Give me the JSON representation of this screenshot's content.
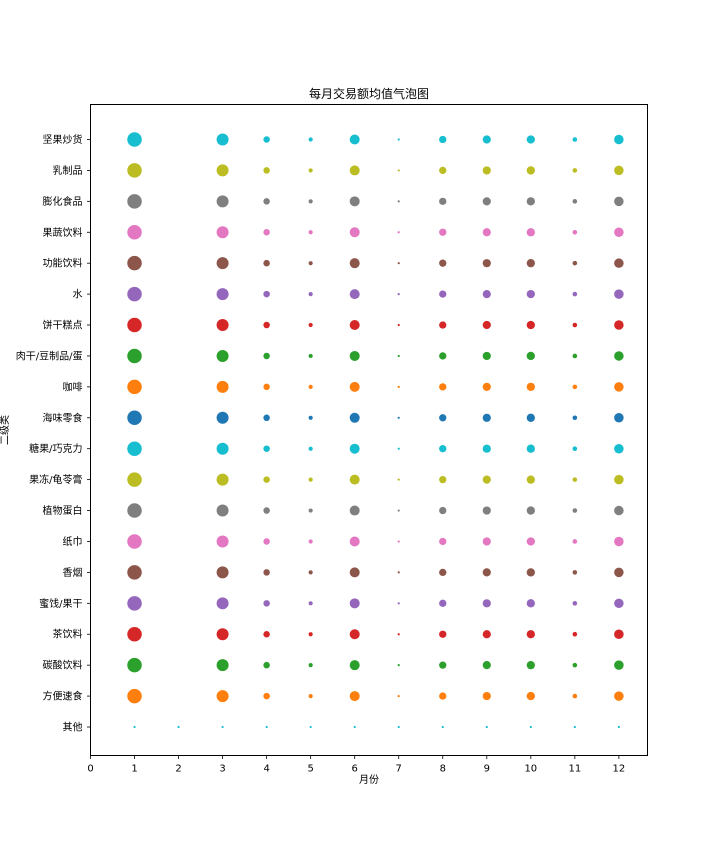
{
  "chart_data": {
    "type": "scatter",
    "title": "每月交易额均值气泡图",
    "xlabel": "月份",
    "ylabel": "二级类",
    "xlim": [
      0,
      12.65
    ],
    "x_ticks": [
      0,
      1,
      2,
      3,
      4,
      5,
      6,
      7,
      8,
      9,
      10,
      11,
      12
    ],
    "categories": [
      "其他",
      "方便速食",
      "碳酸饮料",
      "茶饮料",
      "蜜饯/果干",
      "香烟",
      "纸巾",
      "植物蛋白",
      "果冻/龟苓膏",
      "糖果/巧克力",
      "海味零食",
      "咖啡",
      "肉干/豆制品/蛋",
      "饼干糕点",
      "水",
      "功能饮料",
      "果蔬饮料",
      "膨化食品",
      "乳制品",
      "坚果炒货"
    ],
    "colors": [
      "#1f77b4",
      "#ff7f0e",
      "#2ca02c",
      "#d62728",
      "#9467bd",
      "#8c564b",
      "#e377c2",
      "#7f7f7f",
      "#bcbd22",
      "#17becf",
      "#1f77b4",
      "#ff7f0e",
      "#2ca02c",
      "#d62728",
      "#9467bd",
      "#8c564b",
      "#e377c2",
      "#7f7f7f",
      "#bcbd22",
      "#17becf"
    ],
    "months": [
      1,
      3,
      4,
      5,
      6,
      7,
      8,
      9,
      10,
      11,
      12
    ],
    "bubble_size": {
      "1": 14.5,
      "3": 12,
      "4": 6.5,
      "5": 4.2,
      "6": 10,
      "7": 2.2,
      "8": 7.3,
      "9": 8.2,
      "10": 8.3,
      "11": 4.6,
      "12": 9.5
    },
    "other_series": {
      "name": "其他",
      "months": [
        1,
        2,
        3,
        4,
        5,
        6,
        7,
        8,
        9,
        10,
        11,
        12
      ],
      "size": 2.2,
      "color": "#17becf"
    },
    "grid": false
  }
}
